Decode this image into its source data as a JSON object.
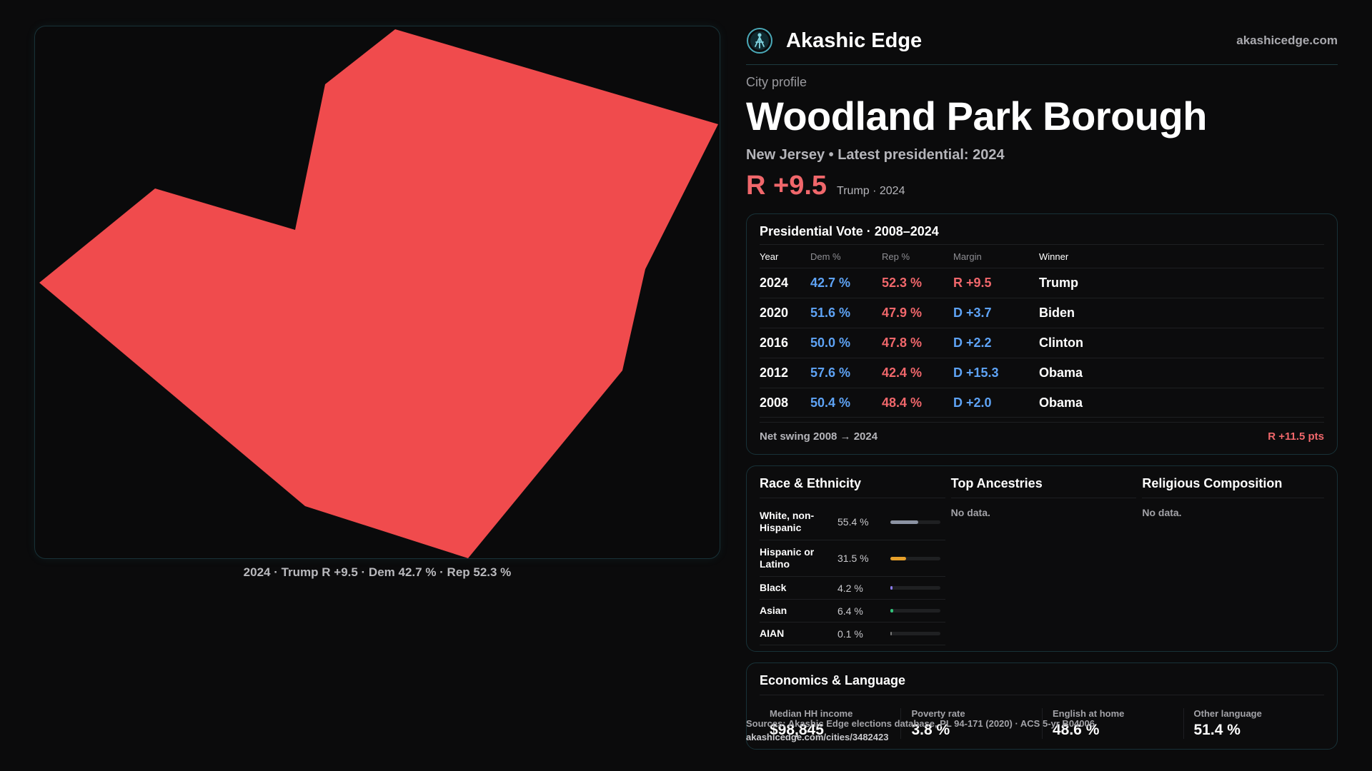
{
  "map": {
    "fill_color": "#f04b4d",
    "caption": "2024 · Trump R +9.5 · Dem 42.7 % · Rep 52.3 %"
  },
  "header": {
    "brand": "Akashic Edge",
    "url": "akashicedge.com",
    "logo_icon": "akashic-logo-icon"
  },
  "profile": {
    "eyebrow": "City profile",
    "title": "Woodland Park Borough",
    "subline": "New Jersey • Latest presidential: 2024",
    "margin": "R +9.5",
    "margin_note": "Trump · 2024"
  },
  "vote": {
    "title": "Presidential Vote · 2008–2024",
    "columns": [
      "Year",
      "Dem %",
      "Rep %",
      "Margin",
      "Winner"
    ],
    "rows": [
      {
        "year": "2024",
        "dem": "42.7 %",
        "rep": "52.3 %",
        "margin": "R +9.5",
        "winner": "Trump"
      },
      {
        "year": "2020",
        "dem": "51.6 %",
        "rep": "47.9 %",
        "margin": "D +3.7",
        "winner": "Biden"
      },
      {
        "year": "2016",
        "dem": "50.0 %",
        "rep": "47.8 %",
        "margin": "D +2.2",
        "winner": "Clinton"
      },
      {
        "year": "2012",
        "dem": "57.6 %",
        "rep": "42.4 %",
        "margin": "D +15.3",
        "winner": "Obama"
      },
      {
        "year": "2008",
        "dem": "50.4 %",
        "rep": "48.4 %",
        "margin": "D +2.0",
        "winner": "Obama"
      }
    ],
    "swing_label": "Net swing 2008 → 2024",
    "swing_value": "R +11.5 pts"
  },
  "demographics": {
    "race_title": "Race & Ethnicity",
    "race": [
      {
        "name": "White, non-Hispanic",
        "pct": "55.4 %",
        "share": 0.554,
        "color": "#8c93a3"
      },
      {
        "name": "Hispanic or Latino",
        "pct": "31.5 %",
        "share": 0.315,
        "color": "#e7a02a"
      },
      {
        "name": "Black",
        "pct": "4.2 %",
        "share": 0.042,
        "color": "#8b7cf0"
      },
      {
        "name": "Asian",
        "pct": "6.4 %",
        "share": 0.064,
        "color": "#33c27a"
      },
      {
        "name": "AIAN",
        "pct": "0.1 %",
        "share": 0.001,
        "color": "#777777"
      }
    ],
    "ancestry_title": "Top Ancestries",
    "ancestry_empty": "No data.",
    "religion_title": "Religious Composition",
    "religion_empty": "No data."
  },
  "economics": {
    "title": "Economics & Language",
    "items": [
      {
        "label": "Median HH income",
        "value": "$98,845"
      },
      {
        "label": "Poverty rate",
        "value": "3.8 %"
      },
      {
        "label": "English at home",
        "value": "48.6 %"
      },
      {
        "label": "Other language",
        "value": "51.4 %"
      }
    ]
  },
  "footer": {
    "sources": "Sources: Akashic Edge elections database, PL 94-171 (2020) · ACS 5-yr B04006",
    "link": "akashicedge.com/cities/3482423"
  }
}
